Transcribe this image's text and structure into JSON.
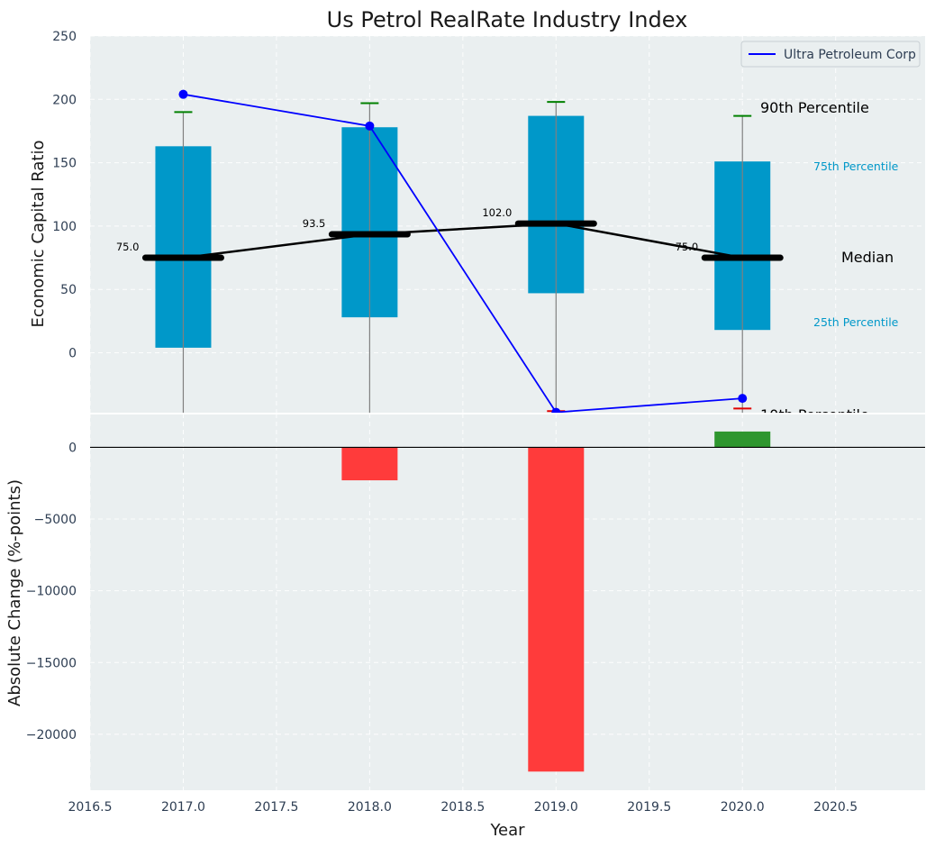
{
  "chart_data": [
    {
      "type": "box",
      "title": "Us Petrol RealRate Industry Index",
      "ylabel": "Economic Capital Ratio",
      "xlabel": "",
      "xlim": [
        2016.5,
        2020.98
      ],
      "ylim": [
        -48,
        250
      ],
      "yticks": [
        0,
        50,
        100,
        150,
        200,
        250
      ],
      "categories": [
        2017,
        2018,
        2019,
        2020
      ],
      "boxes": [
        {
          "year": 2017,
          "p10": -48,
          "q1": 4,
          "median": 75.0,
          "q3": 163,
          "p90": 190,
          "median_label": "75.0"
        },
        {
          "year": 2018,
          "p10": -48,
          "q1": 28,
          "median": 93.5,
          "q3": 178,
          "p90": 197,
          "median_label": "93.5"
        },
        {
          "year": 2019,
          "p10": -46,
          "q1": 47,
          "median": 102.0,
          "q3": 187,
          "p90": 198,
          "median_label": "102.0"
        },
        {
          "year": 2020,
          "p10": -44,
          "q1": 18,
          "median": 75.0,
          "q3": 151,
          "p90": 187,
          "median_label": "75.0"
        }
      ],
      "series": [
        {
          "name": "Ultra Petroleum Corp",
          "color": "#0000FF",
          "x": [
            2017,
            2018,
            2019,
            2020
          ],
          "values": [
            204,
            179,
            -47,
            -36
          ]
        }
      ],
      "percentile_labels": {
        "p90": "90th Percentile",
        "p75": "75th Percentile",
        "median": "Median",
        "p25": "25th Percentile",
        "p10": "10th Percentile"
      },
      "legend_position": "top-right",
      "grid": true
    },
    {
      "type": "bar",
      "ylabel": "Absolute Change (%-points)",
      "xlabel": "Year",
      "xlim": [
        2016.5,
        2020.98
      ],
      "ylim": [
        -23900,
        2350
      ],
      "yticks": [
        0,
        -5000,
        -10000,
        -15000,
        -20000
      ],
      "xticks": [
        2016.5,
        2017.0,
        2017.5,
        2018.0,
        2018.5,
        2019.0,
        2019.5,
        2020.0,
        2020.5
      ],
      "xtick_labels": [
        "2016.5",
        "2017.0",
        "2017.5",
        "2018.0",
        "2018.5",
        "2019.0",
        "2019.5",
        "2020.0",
        "2020.5"
      ],
      "categories": [
        2018,
        2019,
        2020
      ],
      "values": [
        -2300,
        -22600,
        1100
      ],
      "colors": [
        "#FF3B3B",
        "#FF3B3B",
        "#2E962E"
      ],
      "grid": true
    }
  ],
  "colors": {
    "box_fill": "#0098C9",
    "median_bar": "#000000",
    "median_line": "#000000",
    "whisker": "#808080",
    "cap_top": "#008000",
    "cap_bottom": "#E00000",
    "series": "#0000FF",
    "positive": "#2E962E",
    "negative": "#FF3B3B",
    "pct_small": "#0098C9"
  }
}
